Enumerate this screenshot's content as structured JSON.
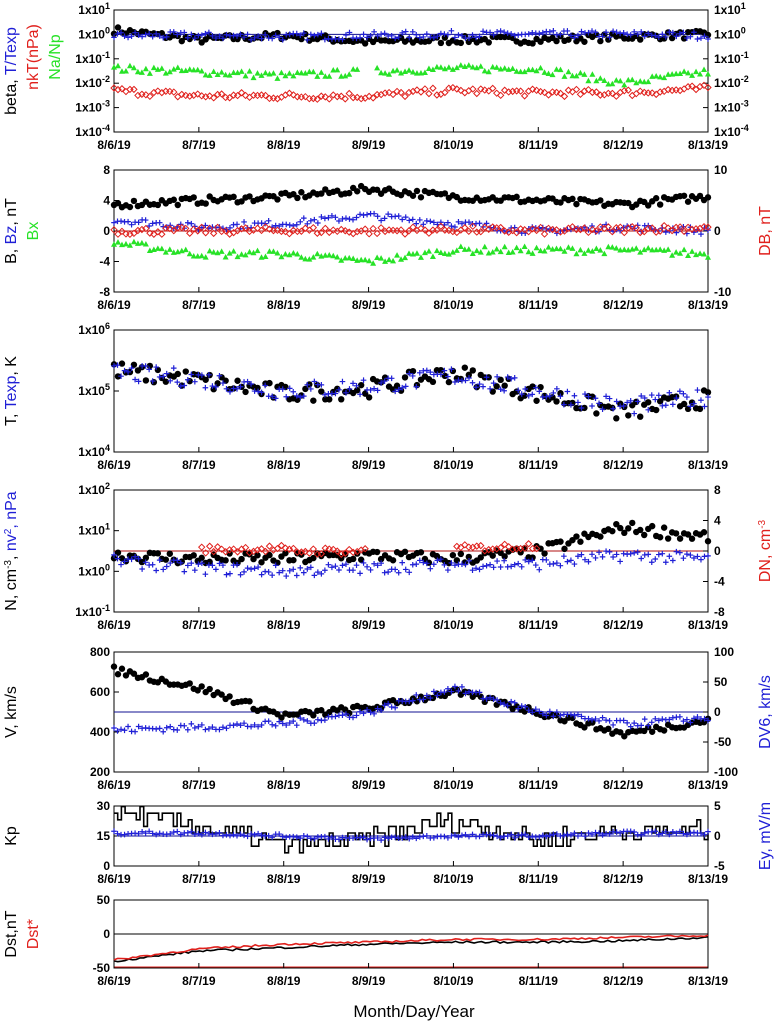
{
  "colors": {
    "black": "#000000",
    "blue": "#1f1fd6",
    "red": "#e0201c",
    "green": "#27e227",
    "darkred": "#b01010",
    "navy": "#101090"
  },
  "date_ticks": [
    "8/6/19",
    "8/7/19",
    "8/8/19",
    "8/9/19",
    "8/10/19",
    "8/11/19",
    "8/12/19",
    "8/13/19"
  ],
  "x_axis_title": "Month/Day/Year",
  "chart_data": [
    {
      "id": "p1",
      "type": "scatter",
      "scale": "log",
      "left_axis": {
        "ylim": [
          0.0001,
          10
        ],
        "ticks": [
          {
            "value": 10,
            "label": "1x10",
            "exp": "1"
          },
          {
            "value": 1,
            "label": "1x10",
            "exp": "0"
          },
          {
            "value": 0.1,
            "label": "1x10",
            "exp": "-1"
          },
          {
            "value": 0.01,
            "label": "1x10",
            "exp": "-2"
          },
          {
            "value": 0.001,
            "label": "1x10",
            "exp": "-3"
          },
          {
            "value": 0.0001,
            "label": "1x10",
            "exp": "-4"
          }
        ],
        "label_parts": [
          {
            "text": "beta, ",
            "color": "black"
          },
          {
            "text": "T/Texp",
            "color": "blue"
          }
        ],
        "label_parts_2": [
          {
            "text": "nkT(nPa)",
            "color": "red"
          }
        ],
        "label_parts_3": [
          {
            "text": "Na/Np",
            "color": "green"
          }
        ]
      },
      "right_axis": {
        "ylim": [
          0.0001,
          10
        ],
        "ticks": [
          {
            "value": 10,
            "label": "1x10",
            "exp": "1"
          },
          {
            "value": 1,
            "label": "1x10",
            "exp": "0"
          },
          {
            "value": 0.1,
            "label": "1x10",
            "exp": "-1"
          },
          {
            "value": 0.01,
            "label": "1x10",
            "exp": "-2"
          },
          {
            "value": 0.001,
            "label": "1x10",
            "exp": "-3"
          },
          {
            "value": 0.0001,
            "label": "1x10",
            "exp": "-4"
          }
        ]
      },
      "reference_line": 1,
      "series": [
        {
          "color": "black",
          "marker": "dot",
          "day_values": [
            1.5,
            0.6,
            0.9,
            0.5,
            0.6,
            0.6,
            0.8,
            1.0
          ]
        },
        {
          "color": "blue",
          "marker": "plus",
          "day_values": [
            0.9,
            0.9,
            0.8,
            0.9,
            1.0,
            1.0,
            1.0,
            0.9
          ]
        },
        {
          "color": "green",
          "marker": "triangle",
          "day_values": [
            0.04,
            0.03,
            0.02,
            0.03,
            0.04,
            0.04,
            0.01,
            0.03
          ]
        },
        {
          "color": "red",
          "marker": "diamond",
          "day_values": [
            0.005,
            0.003,
            0.003,
            0.003,
            0.005,
            0.004,
            0.004,
            0.006
          ]
        }
      ]
    },
    {
      "id": "p2",
      "type": "scatter",
      "scale": "linear",
      "left_axis": {
        "ylim": [
          -8,
          8
        ],
        "ticks": [
          {
            "value": 8,
            "label": "8"
          },
          {
            "value": 4,
            "label": "4"
          },
          {
            "value": 0,
            "label": "0"
          },
          {
            "value": -4,
            "label": "-4"
          },
          {
            "value": -8,
            "label": "-8"
          }
        ],
        "label_parts": [
          {
            "text": "B, ",
            "color": "black"
          },
          {
            "text": "Bz",
            "color": "blue"
          },
          {
            "text": ", nT",
            "color": "black"
          }
        ],
        "label_parts_2": [
          {
            "text": "Bx",
            "color": "green"
          }
        ]
      },
      "right_axis": {
        "ylim": [
          -10,
          10
        ],
        "ticks": [
          {
            "value": 10,
            "label": "10"
          },
          {
            "value": 0,
            "label": "0"
          },
          {
            "value": -10,
            "label": "-10"
          }
        ],
        "label_parts": [
          {
            "text": "DB, nT",
            "color": "red"
          }
        ]
      },
      "reference_line": 0,
      "series": [
        {
          "color": "black",
          "marker": "dot",
          "day_values": [
            3.5,
            4.0,
            4.5,
            5.5,
            4.5,
            4.0,
            3.5,
            4.5
          ]
        },
        {
          "color": "blue",
          "marker": "plus",
          "day_values": [
            1.5,
            0.5,
            1.0,
            2.0,
            1.0,
            0.0,
            0.5,
            0.0
          ]
        },
        {
          "color": "green",
          "marker": "triangle",
          "day_values": [
            -1.5,
            -3.0,
            -3.0,
            -4.0,
            -2.5,
            -2.5,
            -2.5,
            -3.0
          ]
        },
        {
          "color": "red",
          "marker": "diamond",
          "day_values": [
            0.0,
            0.0,
            0.1,
            0.0,
            0.2,
            0.0,
            0.2,
            0.5
          ]
        }
      ]
    },
    {
      "id": "p3",
      "type": "scatter",
      "scale": "log",
      "left_axis": {
        "ylim": [
          10000,
          1000000
        ],
        "ticks": [
          {
            "value": 1000000,
            "label": "1x10",
            "exp": "6"
          },
          {
            "value": 100000,
            "label": "1x10",
            "exp": "5"
          },
          {
            "value": 10000,
            "label": "1x10",
            "exp": "4"
          }
        ],
        "label_parts": [
          {
            "text": "T, ",
            "color": "black"
          },
          {
            "text": "Texp",
            "color": "blue"
          },
          {
            "text": ", K",
            "color": "black"
          }
        ]
      },
      "series": [
        {
          "color": "black",
          "marker": "dot",
          "day_values": [
            220000,
            150000,
            90000,
            110000,
            200000,
            90000,
            45000,
            75000
          ]
        },
        {
          "color": "blue",
          "marker": "plus",
          "day_values": [
            200000,
            160000,
            100000,
            120000,
            180000,
            100000,
            55000,
            80000
          ]
        }
      ]
    },
    {
      "id": "p4",
      "type": "scatter",
      "scale": "log",
      "left_axis": {
        "ylim": [
          0.1,
          100
        ],
        "ticks": [
          {
            "value": 100,
            "label": "1x10",
            "exp": "2"
          },
          {
            "value": 10,
            "label": "1x10",
            "exp": "1"
          },
          {
            "value": 1,
            "label": "1x10",
            "exp": "0"
          },
          {
            "value": 0.1,
            "label": "1x10",
            "exp": "-1"
          }
        ],
        "label_parts": [
          {
            "text": "N, cm",
            "color": "black",
            "sup": "-3"
          },
          {
            "text": ", ",
            "color": "black"
          },
          {
            "text": "nv",
            "color": "blue",
            "sup": "2"
          },
          {
            "text": ", nPa",
            "color": "blue"
          }
        ]
      },
      "right_axis": {
        "ylim": [
          -8,
          8
        ],
        "ticks": [
          {
            "value": 8,
            "label": "8"
          },
          {
            "value": 4,
            "label": "4"
          },
          {
            "value": 0,
            "label": "0"
          },
          {
            "value": -4,
            "label": "-4"
          },
          {
            "value": -8,
            "label": "-8"
          }
        ],
        "label_parts": [
          {
            "text": "DN, cm",
            "color": "red",
            "sup": "-3"
          }
        ]
      },
      "reference_line_right": 0,
      "series": [
        {
          "color": "black",
          "marker": "dot",
          "day_values": [
            2.5,
            2.0,
            2.0,
            2.5,
            2.0,
            3.0,
            12.0,
            7.0
          ]
        },
        {
          "color": "blue",
          "marker": "plus",
          "day_values": [
            1.8,
            1.2,
            1.0,
            1.2,
            1.5,
            1.5,
            2.5,
            2.0
          ]
        },
        {
          "color": "red",
          "marker": "diamond",
          "axis": "right",
          "day_values": [
            0.0,
            0.2,
            0.3,
            0.0,
            0.3,
            0.8,
            -3.0,
            0.0
          ]
        }
      ]
    },
    {
      "id": "p5",
      "type": "scatter",
      "scale": "linear",
      "left_axis": {
        "ylim": [
          200,
          800
        ],
        "ticks": [
          {
            "value": 800,
            "label": "800"
          },
          {
            "value": 600,
            "label": "600"
          },
          {
            "value": 400,
            "label": "400"
          },
          {
            "value": 200,
            "label": "200"
          }
        ],
        "label_parts": [
          {
            "text": "V, km/s",
            "color": "black"
          }
        ]
      },
      "right_axis": {
        "ylim": [
          -100,
          100
        ],
        "ticks": [
          {
            "value": 100,
            "label": "100"
          },
          {
            "value": 50,
            "label": "50"
          },
          {
            "value": 0,
            "label": "0"
          },
          {
            "value": -50,
            "label": "-50"
          },
          {
            "value": -100,
            "label": "-100"
          }
        ],
        "label_parts": [
          {
            "text": "DV6, km/s",
            "color": "blue"
          }
        ]
      },
      "reference_line_right": 0,
      "series": [
        {
          "color": "black",
          "marker": "dot",
          "day_values": [
            710,
            620,
            480,
            520,
            600,
            500,
            390,
            460
          ]
        },
        {
          "color": "blue",
          "marker": "plus",
          "axis": "right",
          "day_values": [
            -30,
            -25,
            -20,
            0,
            40,
            0,
            -20,
            -10
          ]
        }
      ]
    },
    {
      "id": "p6",
      "type": "line",
      "scale": "linear",
      "left_axis": {
        "ylim": [
          0,
          30
        ],
        "ticks": [
          {
            "value": 30,
            "label": "30"
          },
          {
            "value": 15,
            "label": "15"
          },
          {
            "value": 0,
            "label": "0"
          }
        ],
        "label_parts": [
          {
            "text": "Kp",
            "color": "black"
          }
        ]
      },
      "right_axis": {
        "ylim": [
          -5,
          5
        ],
        "ticks": [
          {
            "value": 5,
            "label": "5"
          },
          {
            "value": 0,
            "label": "0"
          },
          {
            "value": -5,
            "label": "-5"
          }
        ],
        "label_parts": [
          {
            "text": "Ey, mV/m",
            "color": "blue"
          }
        ]
      },
      "reference_line_right": 0,
      "series": [
        {
          "color": "black",
          "marker": "step",
          "day_values": [
            27,
            20,
            10,
            13,
            23,
            13,
            17,
            17
          ]
        },
        {
          "color": "blue",
          "marker": "plus",
          "axis": "right",
          "day_values": [
            0.5,
            0.5,
            0.0,
            -0.5,
            0.0,
            0.0,
            0.5,
            0.5
          ]
        }
      ]
    },
    {
      "id": "p7",
      "type": "line",
      "scale": "linear",
      "left_axis": {
        "ylim": [
          -50,
          50
        ],
        "ticks": [
          {
            "value": 50,
            "label": "50"
          },
          {
            "value": 0,
            "label": "0"
          },
          {
            "value": -50,
            "label": "-50"
          }
        ],
        "label_parts": [
          {
            "text": "Dst,nT",
            "color": "black"
          }
        ],
        "label_parts_2": [
          {
            "text": "Dst*",
            "color": "red"
          }
        ]
      },
      "reference_line": 0,
      "bottom_line": -50,
      "series": [
        {
          "color": "black",
          "marker": "line",
          "day_values": [
            -40,
            -25,
            -20,
            -15,
            -12,
            -12,
            -10,
            -5
          ]
        },
        {
          "color": "red",
          "marker": "line",
          "day_values": [
            -38,
            -22,
            -15,
            -12,
            -8,
            -8,
            -5,
            -2
          ]
        }
      ]
    }
  ]
}
